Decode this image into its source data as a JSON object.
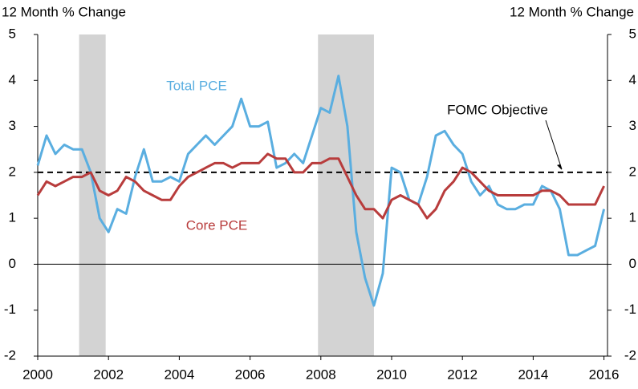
{
  "chart_data": {
    "type": "line",
    "y_label": "12 Month % Change",
    "y2_label": "12 Month % Change",
    "x": [
      2000,
      2000.25,
      2000.5,
      2000.75,
      2001,
      2001.25,
      2001.5,
      2001.75,
      2002,
      2002.25,
      2002.5,
      2002.75,
      2003,
      2003.25,
      2003.5,
      2003.75,
      2004,
      2004.25,
      2004.5,
      2004.75,
      2005,
      2005.25,
      2005.5,
      2005.75,
      2006,
      2006.25,
      2006.5,
      2006.75,
      2007,
      2007.25,
      2007.5,
      2007.75,
      2008,
      2008.25,
      2008.5,
      2008.75,
      2009,
      2009.25,
      2009.5,
      2009.75,
      2010,
      2010.25,
      2010.5,
      2010.75,
      2011,
      2011.25,
      2011.5,
      2011.75,
      2012,
      2012.25,
      2012.5,
      2012.75,
      2013,
      2013.25,
      2013.5,
      2013.75,
      2014,
      2014.25,
      2014.5,
      2014.75,
      2015,
      2015.25,
      2015.5,
      2015.75,
      2016
    ],
    "series": [
      {
        "name": "Total PCE",
        "color": "#5aaee0",
        "values": [
          2.15,
          2.8,
          2.4,
          2.6,
          2.5,
          2.5,
          2.0,
          1.0,
          0.7,
          1.2,
          1.1,
          1.9,
          2.5,
          1.8,
          1.8,
          1.9,
          1.8,
          2.4,
          2.6,
          2.8,
          2.6,
          2.8,
          3.0,
          3.6,
          3.0,
          3.0,
          3.1,
          2.1,
          2.2,
          2.4,
          2.2,
          2.8,
          3.4,
          3.3,
          4.1,
          3.0,
          0.7,
          -0.3,
          -0.9,
          -0.2,
          2.1,
          2.0,
          1.4,
          1.3,
          1.9,
          2.8,
          2.9,
          2.6,
          2.4,
          1.8,
          1.5,
          1.7,
          1.3,
          1.2,
          1.2,
          1.3,
          1.3,
          1.7,
          1.6,
          1.2,
          0.2,
          0.2,
          0.3,
          0.4,
          1.2
        ]
      },
      {
        "name": "Core PCE",
        "color": "#b83c3c",
        "values": [
          1.5,
          1.8,
          1.7,
          1.8,
          1.9,
          1.9,
          2.0,
          1.6,
          1.5,
          1.6,
          1.9,
          1.8,
          1.6,
          1.5,
          1.4,
          1.4,
          1.7,
          1.9,
          2.0,
          2.1,
          2.2,
          2.2,
          2.1,
          2.2,
          2.2,
          2.2,
          2.4,
          2.3,
          2.3,
          2.0,
          2.0,
          2.2,
          2.2,
          2.3,
          2.3,
          1.9,
          1.5,
          1.2,
          1.2,
          1.0,
          1.4,
          1.5,
          1.4,
          1.3,
          1.0,
          1.2,
          1.6,
          1.8,
          2.1,
          2.0,
          1.8,
          1.6,
          1.5,
          1.5,
          1.5,
          1.5,
          1.5,
          1.6,
          1.6,
          1.5,
          1.3,
          1.3,
          1.3,
          1.3,
          1.7
        ]
      }
    ],
    "reference_line": {
      "value": 2,
      "label": "FOMC Objective"
    },
    "shaded_regions": [
      [
        2001.17,
        2001.92
      ],
      [
        2007.92,
        2009.5
      ]
    ],
    "xlim": [
      2000,
      2016.1
    ],
    "xticks": [
      2000,
      2002,
      2004,
      2006,
      2008,
      2010,
      2012,
      2014,
      2016
    ],
    "ylim": [
      -2,
      5
    ],
    "yticks": [
      -2,
      -1,
      0,
      1,
      2,
      3,
      4,
      5
    ],
    "y2lim": [
      -2,
      5
    ],
    "y2ticks": [
      -2,
      -1,
      0,
      1,
      2,
      3,
      4,
      5
    ]
  }
}
